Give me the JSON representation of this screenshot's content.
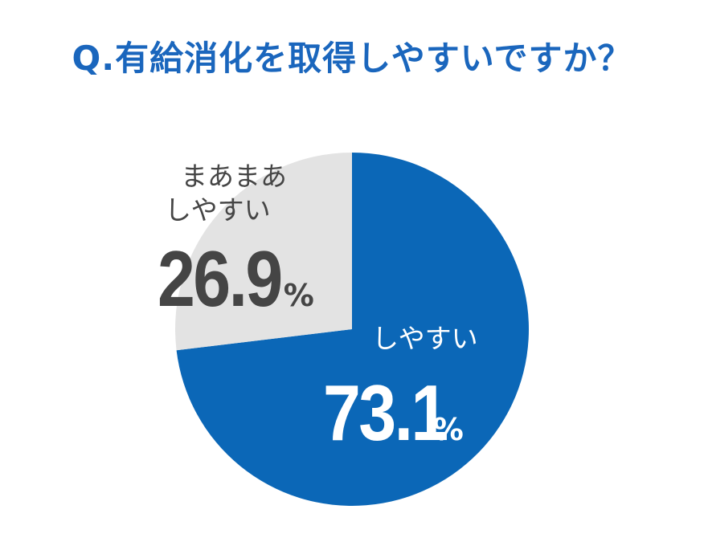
{
  "title": "Q.有給消化を取得しやすいですか？",
  "colors": {
    "title": "#1a66bd",
    "blue": "#0b67b7",
    "gray": "#e3e3e3",
    "dark_text": "#454545",
    "white_text": "#ffffff"
  },
  "chart_data": {
    "type": "pie",
    "title": "Q.有給消化を取得しやすいですか？",
    "start": "12 o'clock",
    "direction": "clockwise",
    "slices": [
      {
        "label": "しやすい",
        "value": 73.1,
        "value_text": "73.1",
        "unit": "%",
        "color": "#0b67b7"
      },
      {
        "label_lines": [
          "まあまあ",
          "しやすい"
        ],
        "label": "まあまあしやすい",
        "value": 26.9,
        "value_text": "26.9",
        "unit": "%",
        "color": "#e3e3e3"
      }
    ]
  }
}
